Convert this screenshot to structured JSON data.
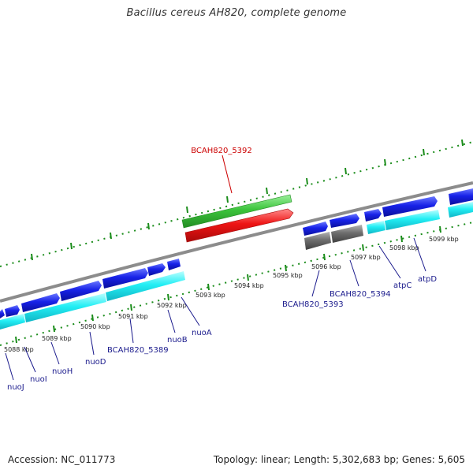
{
  "title": "Bacillus cereus AH820, complete genome",
  "footer": {
    "accession": "Accession: NC_011773",
    "summary": "Topology: linear; Length: 5,302,683 bp; Genes: 5,605"
  },
  "colors": {
    "plus_strand_gene": "#0a14e0",
    "plus_strand_cds": "#1fe8f0",
    "minus_strand_gene": "#e01010",
    "minus_strand_cds": "#40c040",
    "pseudo_gene": "#606060",
    "highlight_label": "#cc0000",
    "gene_label": "#1a1a8c",
    "backbone": "#8c8c8c",
    "tick": "#1a8c1a"
  },
  "scale_labels": [
    "5088 kbp",
    "5089 kbp",
    "5090 kbp",
    "5091 kbp",
    "5092 kbp",
    "5093 kbp",
    "5094 kbp",
    "5095 kbp",
    "5096 kbp",
    "5097 kbp",
    "5098 kbp",
    "5099 kbp"
  ],
  "gene_labels": {
    "highlight": "BCAH820_5392",
    "lower": [
      "nuoJ",
      "nuoI",
      "nuoH",
      "nuoD",
      "BCAH820_5389",
      "nuoB",
      "nuoA",
      "BCAH820_5393",
      "BCAH820_5394",
      "atpC",
      "atpD"
    ]
  }
}
